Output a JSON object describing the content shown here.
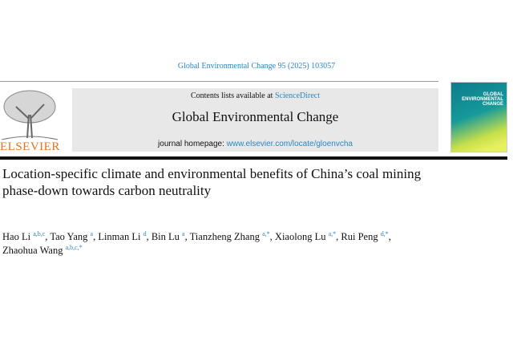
{
  "citation": "Global Environmental Change 95 (2025) 103057",
  "publisher_logo": {
    "text": "ELSEVIER",
    "color": "#e9711c"
  },
  "banner": {
    "contents_prefix": "Contents lists available at ",
    "contents_link": "ScienceDirect",
    "journal_title": "Global Environmental Change",
    "homepage_prefix": "journal homepage: ",
    "homepage_link": "www.elsevier.com/locate/gloenvcha"
  },
  "cover": {
    "title_lines": [
      "GLOBAL",
      "ENVIRONMENTAL",
      "CHANGE"
    ]
  },
  "article": {
    "title": "Location-specific climate and environmental benefits of China’s coal mining phase-down towards carbon neutrality",
    "authors": [
      {
        "name": "Hao Li",
        "aff": "a,b,c",
        "sep": ", "
      },
      {
        "name": "Tao Yang",
        "aff": "a",
        "sep": ", "
      },
      {
        "name": "Linman Li",
        "aff": "d",
        "sep": ", "
      },
      {
        "name": "Bin Lu",
        "aff": "a",
        "sep": ", "
      },
      {
        "name": "Tianzheng Zhang",
        "aff": "a,*",
        "sep": ", "
      },
      {
        "name": "Xiaolong Lu",
        "aff": "a,*",
        "sep": ", "
      },
      {
        "name": "Rui Peng",
        "aff": "d,*",
        "sep": ","
      },
      {
        "name": "Zhaohua Wang",
        "aff": "a,b,c,*",
        "sep": ""
      }
    ]
  },
  "colors": {
    "link": "#2a86c2",
    "banner_bg": "#e8e8e8"
  }
}
